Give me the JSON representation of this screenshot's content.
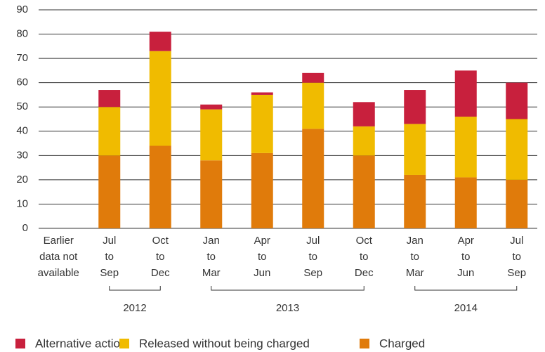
{
  "chart_data": {
    "type": "stacked_bar",
    "categories": [
      [
        "Earlier",
        "data not",
        "available"
      ],
      [
        "Jul",
        "to",
        "Sep"
      ],
      [
        "Oct",
        "to",
        "Dec"
      ],
      [
        "Jan",
        "to",
        "Mar"
      ],
      [
        "Apr",
        "to",
        "Jun"
      ],
      [
        "Jul",
        "to",
        "Sep"
      ],
      [
        "Oct",
        "to",
        "Dec"
      ],
      [
        "Jan",
        "to",
        "Mar"
      ],
      [
        "Apr",
        "to",
        "Jun"
      ],
      [
        "Jul",
        "to",
        "Sep"
      ]
    ],
    "groups": [
      {
        "label": "2012",
        "span": [
          1,
          2
        ]
      },
      {
        "label": "2013",
        "span": [
          3,
          6
        ]
      },
      {
        "label": "2014",
        "span": [
          7,
          9
        ]
      }
    ],
    "series": [
      {
        "name": "Alternative action",
        "color": "#c8203d",
        "values": [
          null,
          7,
          8,
          2,
          1,
          4,
          10,
          14,
          19,
          15
        ]
      },
      {
        "name": "Released without being charged",
        "color": "#f0bb00",
        "values": [
          null,
          20,
          39,
          21,
          24,
          19,
          12,
          21,
          25,
          25
        ]
      },
      {
        "name": "Charged",
        "color": "#e07b0b",
        "values": [
          null,
          30,
          34,
          28,
          31,
          41,
          30,
          22,
          21,
          20
        ]
      }
    ],
    "ylim": [
      0,
      90
    ],
    "yticks": [
      0,
      10,
      20,
      30,
      40,
      50,
      60,
      70,
      80,
      90
    ],
    "grid": true
  }
}
